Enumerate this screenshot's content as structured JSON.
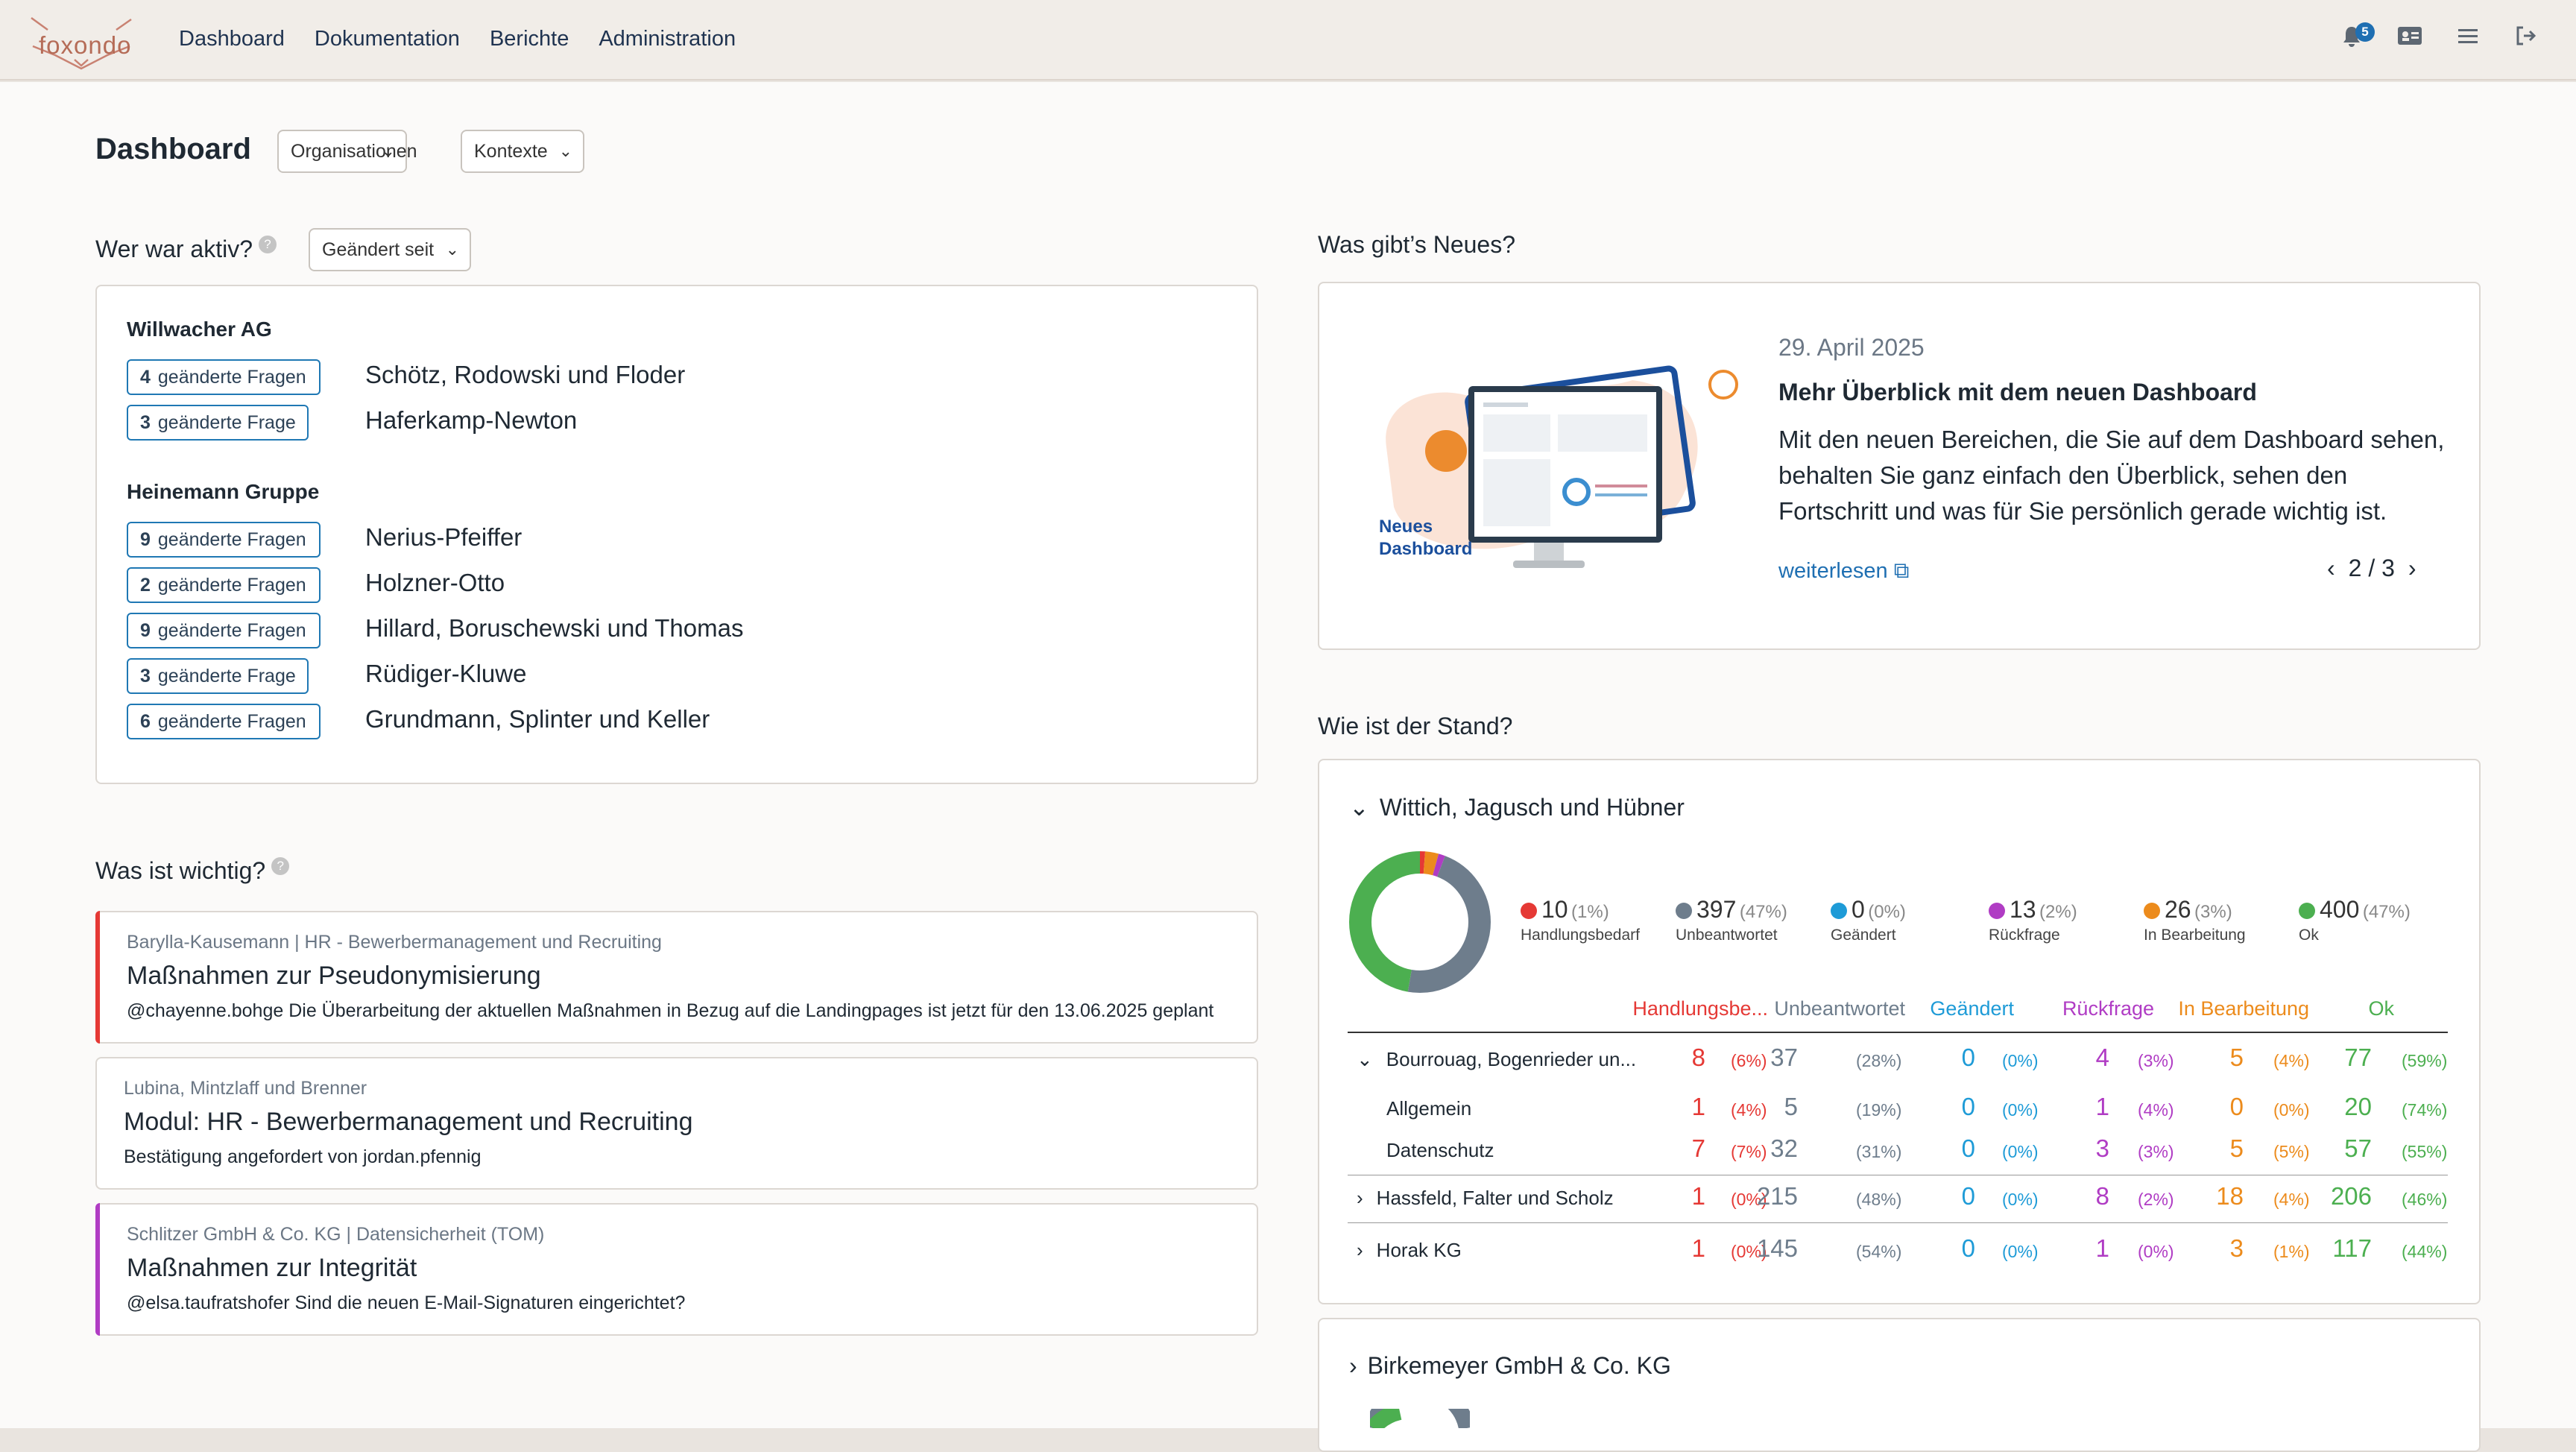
{
  "brand": {
    "name": "foxondo"
  },
  "nav": [
    "Dashboard",
    "Dokumentation",
    "Berichte",
    "Administration"
  ],
  "notifications": {
    "count": "5"
  },
  "colors": {
    "red": "#e53935",
    "gray": "#6e7d8c",
    "blue": "#1e9bd7",
    "purple": "#b03cc4",
    "orange": "#ec8b1c",
    "green": "#4caf50",
    "accent": "#1f6fb2"
  },
  "dashboard": {
    "title": "Dashboard",
    "filters": {
      "organisations": "Organisationen",
      "contexts": "Kontexte"
    }
  },
  "active": {
    "title": "Wer war aktiv?",
    "filter": "Geändert seit",
    "groups": [
      {
        "org": "Willwacher AG",
        "rows": [
          {
            "count": "4",
            "label": "geänderte Fragen",
            "project": "Schötz, Rodowski und Floder"
          },
          {
            "count": "3",
            "label": "geänderte Frage",
            "project": "Haferkamp-Newton"
          }
        ]
      },
      {
        "org": "Heinemann Gruppe",
        "rows": [
          {
            "count": "9",
            "label": "geänderte Fragen",
            "project": "Nerius-Pfeiffer"
          },
          {
            "count": "2",
            "label": "geänderte Fragen",
            "project": "Holzner-Otto"
          },
          {
            "count": "9",
            "label": "geänderte Fragen",
            "project": "Hillard, Boruschewski und Thomas"
          },
          {
            "count": "3",
            "label": "geänderte Frage",
            "project": "Rüdiger-Kluwe"
          },
          {
            "count": "6",
            "label": "geänderte Fragen",
            "project": "Grundmann, Splinter und Keller"
          }
        ]
      }
    ]
  },
  "news": {
    "title": "Was gibt’s Neues?",
    "date": "29. April 2025",
    "headline": "Mehr Überblick mit dem neuen Dashboard",
    "body": "Mit den neuen Bereichen, die Sie auf dem Dashboard sehen, behalten Sie ganz einfach den Überblick, sehen den Fortschritt und was für Sie persönlich gerade wichtig ist.",
    "link": "weiterlesen",
    "pager": "2 / 3",
    "illustration_label_1": "Neues",
    "illustration_label_2": "Dashboard"
  },
  "important": {
    "title": "Was ist wichtig?",
    "items": [
      {
        "meta": "Barylla-Kausemann | HR - Bewerbermanagement und Recruiting",
        "title": "Maßnahmen zur Pseudonymisierung",
        "desc": "@chayenne.bohge Die Überarbeitung der aktuellen Maßnahmen in Bezug auf die Landingpages ist jetzt für den 13.06.2025 geplant",
        "accent": "#e53935"
      },
      {
        "meta": "Lubina, Mintzlaff und Brenner",
        "title": "Modul: HR - Bewerbermanagement und Recruiting",
        "desc": "Bestätigung angefordert von jordan.pfennig",
        "accent": ""
      },
      {
        "meta": "Schlitzer GmbH & Co. KG | Datensicherheit (TOM)",
        "title": "Maßnahmen zur Integrität",
        "desc": "@elsa.taufratshofer Sind die neuen E-Mail-Signaturen eingerichtet?",
        "accent": "#b03cc4"
      }
    ]
  },
  "status": {
    "title": "Wie ist der Stand?",
    "org1": "Wittich, Jagusch und Hübner",
    "org2": "Birkemeyer GmbH & Co. KG",
    "legend": [
      {
        "n": "10",
        "p": "(1%)",
        "label": "Handlungsbedarf",
        "color": "#e53935"
      },
      {
        "n": "397",
        "p": "(47%)",
        "label": "Unbeantwortet",
        "color": "#6e7d8c"
      },
      {
        "n": "0",
        "p": "(0%)",
        "label": "Geändert",
        "color": "#1e9bd7"
      },
      {
        "n": "13",
        "p": "(2%)",
        "label": "Rückfrage",
        "color": "#b03cc4"
      },
      {
        "n": "26",
        "p": "(3%)",
        "label": "In Bearbeitung",
        "color": "#ec8b1c"
      },
      {
        "n": "400",
        "p": "(47%)",
        "label": "Ok",
        "color": "#4caf50"
      }
    ],
    "headers": [
      "Handlungsbe...",
      "Unbeantwortet",
      "Geändert",
      "Rückfrage",
      "In Bearbeitung",
      "Ok"
    ],
    "rows": [
      {
        "name": "Bourrouag, Bogenrieder un...",
        "vals": [
          "8",
          "37",
          "0",
          "4",
          "5",
          "77"
        ],
        "pcts": [
          "(6%)",
          "(28%)",
          "(0%)",
          "(3%)",
          "(4%)",
          "(59%)"
        ]
      },
      {
        "name": "Allgemein",
        "vals": [
          "1",
          "5",
          "0",
          "1",
          "0",
          "20"
        ],
        "pcts": [
          "(4%)",
          "(19%)",
          "(0%)",
          "(4%)",
          "(0%)",
          "(74%)"
        ]
      },
      {
        "name": "Datenschutz",
        "vals": [
          "7",
          "32",
          "0",
          "3",
          "5",
          "57"
        ],
        "pcts": [
          "(7%)",
          "(31%)",
          "(0%)",
          "(3%)",
          "(5%)",
          "(55%)"
        ]
      },
      {
        "name": "Hassfeld, Falter und Scholz",
        "vals": [
          "1",
          "215",
          "0",
          "8",
          "18",
          "206"
        ],
        "pcts": [
          "(0%)",
          "(48%)",
          "(0%)",
          "(2%)",
          "(4%)",
          "(46%)"
        ]
      },
      {
        "name": "Horak KG",
        "vals": [
          "1",
          "145",
          "0",
          "1",
          "3",
          "117"
        ],
        "pcts": [
          "(0%)",
          "(54%)",
          "(0%)",
          "(0%)",
          "(1%)",
          "(44%)"
        ]
      }
    ]
  }
}
